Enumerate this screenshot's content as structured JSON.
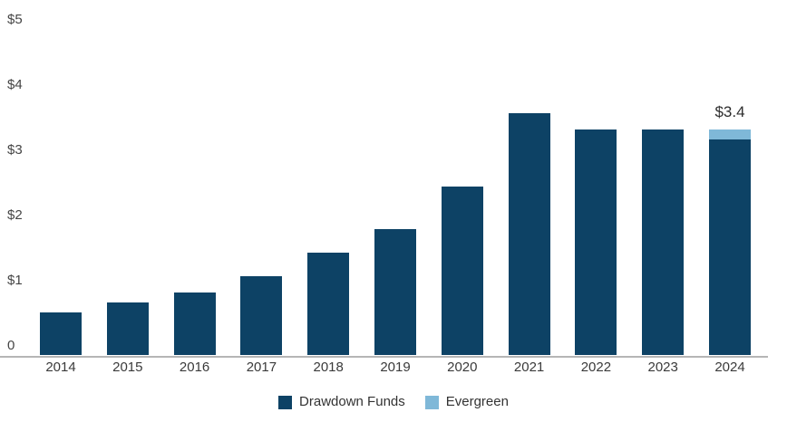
{
  "chart_data": {
    "type": "bar",
    "stacked": true,
    "title": "",
    "xlabel": "",
    "ylabel": "",
    "categories": [
      "2014",
      "2015",
      "2016",
      "2017",
      "2018",
      "2019",
      "2020",
      "2021",
      "2022",
      "2023",
      "2024"
    ],
    "series": [
      {
        "name": "Drawdown Funds",
        "color": "#0d4265",
        "values": [
          0.65,
          0.8,
          0.95,
          1.2,
          1.55,
          1.9,
          2.55,
          3.65,
          3.4,
          3.4,
          3.25
        ]
      },
      {
        "name": "Evergreen",
        "color": "#7fb8d8",
        "values": [
          0,
          0,
          0,
          0,
          0,
          0,
          0,
          0,
          0,
          0,
          0.15
        ]
      }
    ],
    "ylim": [
      0,
      5
    ],
    "yticks": [
      {
        "label": "$5",
        "value": 5
      },
      {
        "label": "$4",
        "value": 4
      },
      {
        "label": "$3",
        "value": 3
      },
      {
        "label": "$2",
        "value": 2
      },
      {
        "label": "$1",
        "value": 1
      },
      {
        "label": "0",
        "value": 0
      }
    ],
    "grid": false,
    "legend_position": "bottom",
    "annotations": [
      {
        "category": "2024",
        "text": "$3.4"
      }
    ]
  },
  "colors": {
    "drawdown": "#0d4265",
    "evergreen": "#7fb8d8",
    "axis_line": "#b5b5b5"
  }
}
